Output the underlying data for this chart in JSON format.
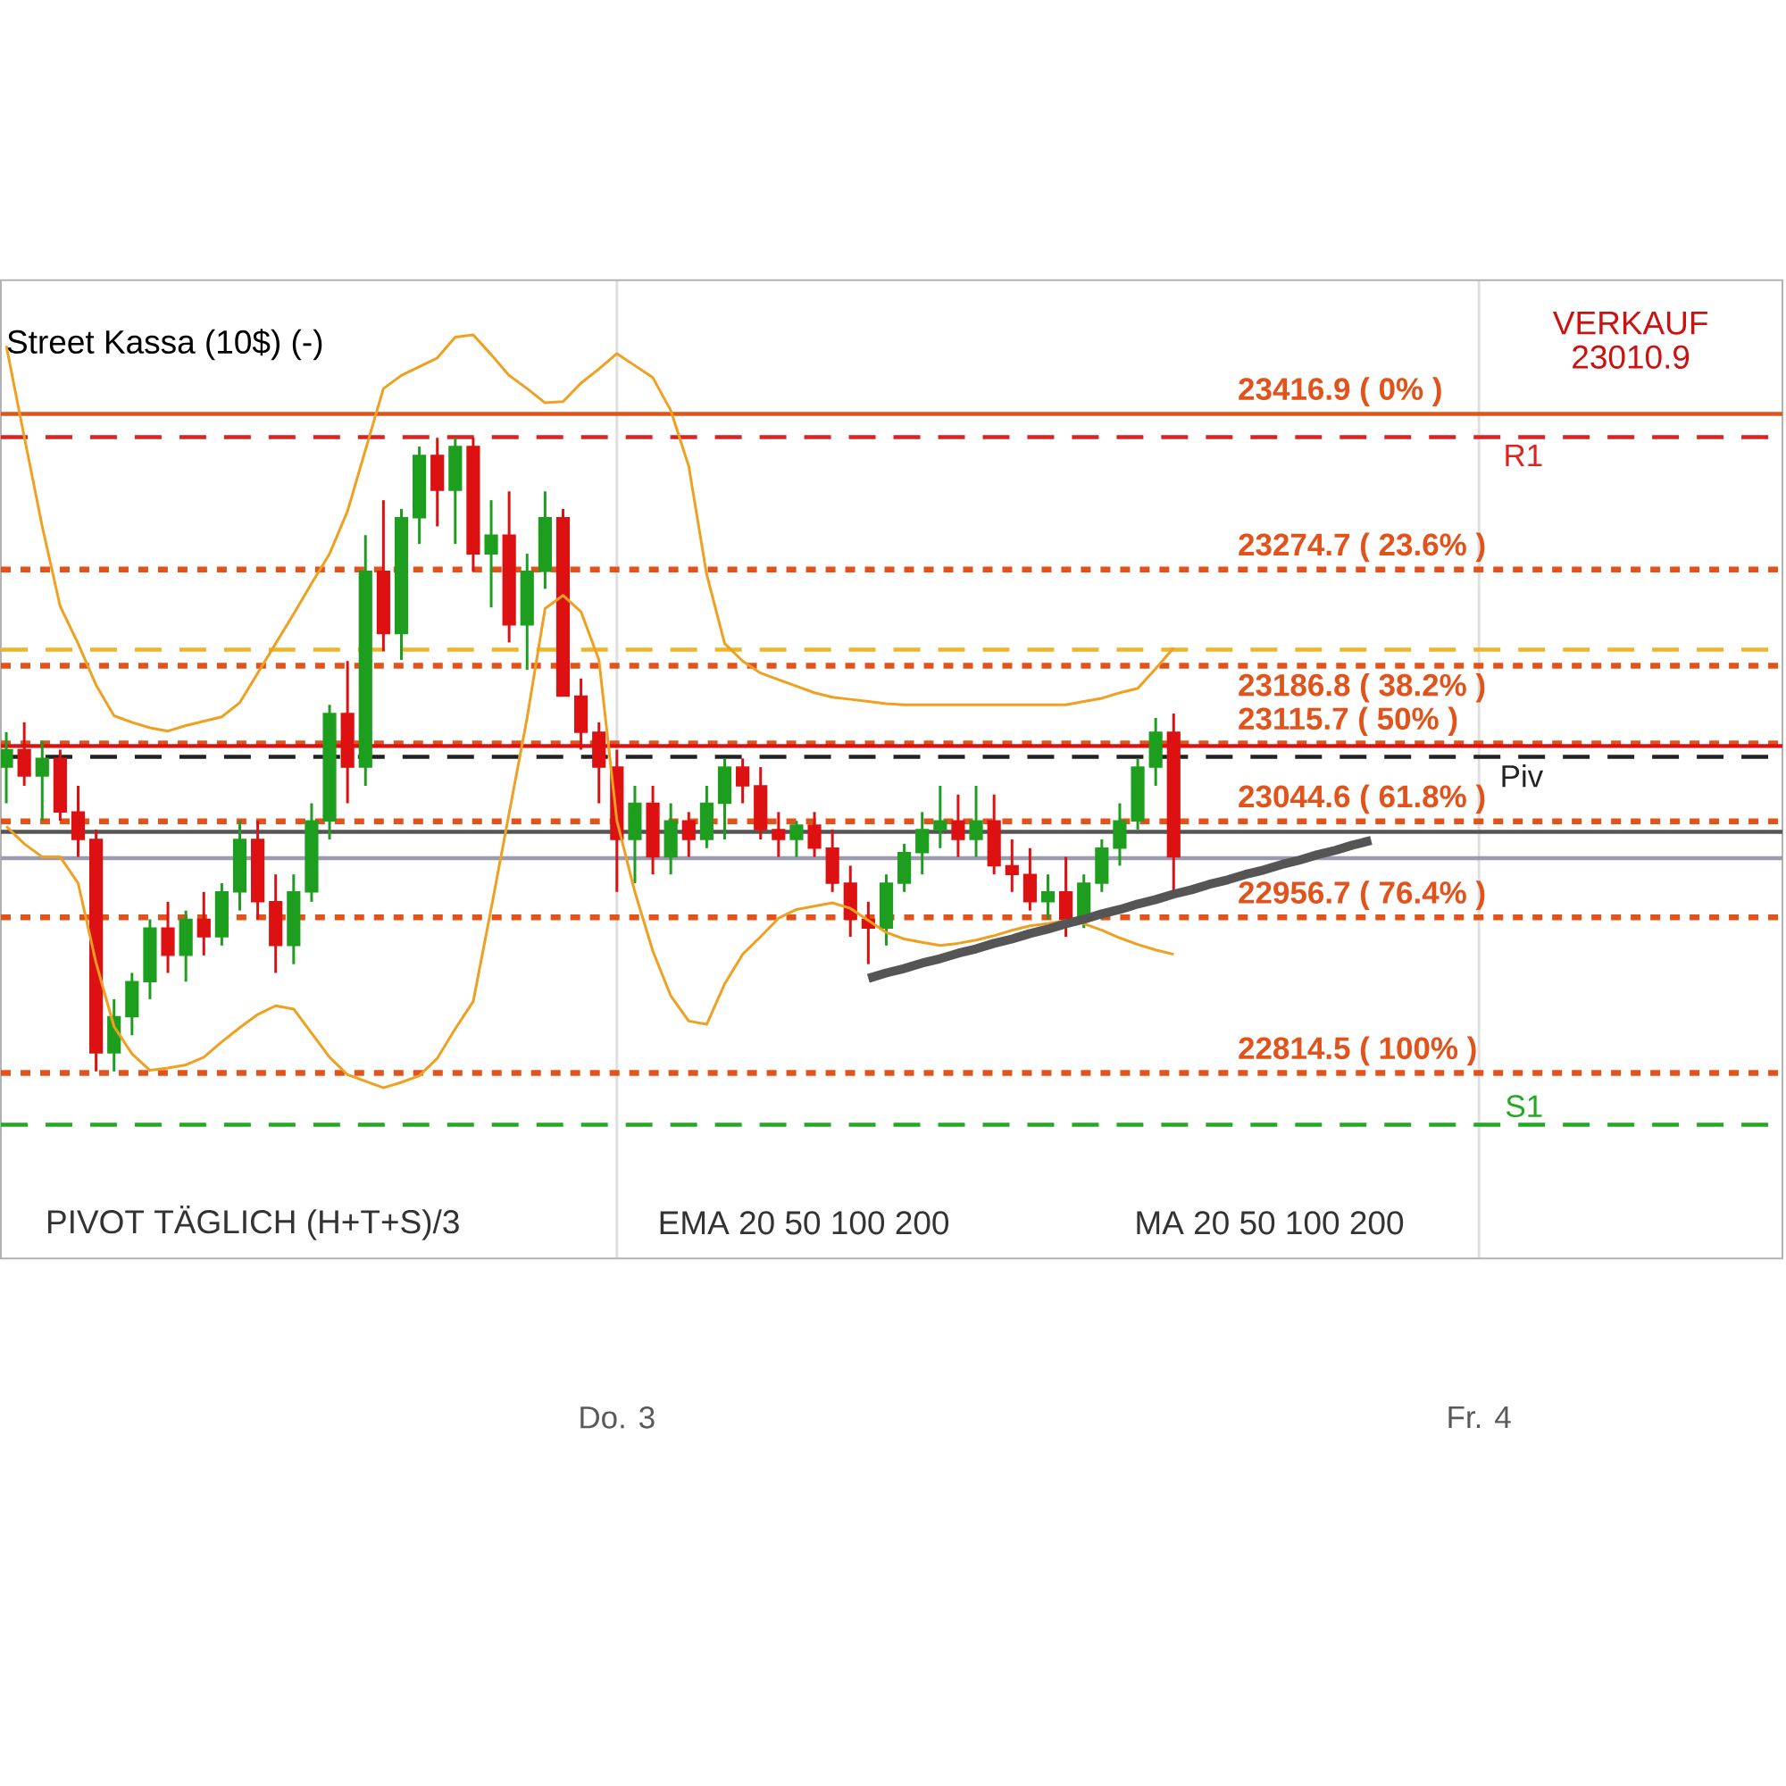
{
  "chart_data": {
    "type": "candlestick",
    "title": "Street Kassa (10$) (-)",
    "categories": [
      null,
      null,
      null,
      null,
      null,
      null,
      null,
      null,
      null,
      null,
      null,
      null,
      null,
      null,
      null,
      null,
      null,
      null,
      null,
      null,
      null,
      null,
      null,
      null,
      null,
      null,
      null,
      null,
      null,
      null,
      null,
      null,
      null,
      null,
      "Do. 3",
      null,
      null,
      null,
      null,
      null,
      null,
      null,
      null,
      null,
      null,
      null,
      null,
      null,
      null,
      null,
      null,
      null,
      null,
      null,
      null,
      null,
      null,
      null,
      null,
      null,
      null,
      null,
      null,
      null,
      null,
      null,
      null,
      null,
      null,
      null,
      null,
      null,
      null,
      null,
      null,
      null,
      null,
      null,
      null,
      null,
      null,
      null,
      "Fr. 4",
      null,
      null,
      null,
      null,
      null,
      null,
      null,
      null,
      null,
      null,
      null,
      null,
      null,
      null,
      null,
      null
    ],
    "ohlc": [
      [
        23094,
        23126,
        23061,
        23110
      ],
      [
        23110,
        23135,
        23077,
        23086
      ],
      [
        23086,
        23118,
        23045,
        23102
      ],
      [
        23102,
        23110,
        23045,
        23053
      ],
      [
        23053,
        23077,
        23012,
        23028
      ],
      [
        23028,
        23037,
        22816,
        22833
      ],
      [
        22833,
        22882,
        22816,
        22866
      ],
      [
        22866,
        22906,
        22849,
        22898
      ],
      [
        22898,
        22955,
        22882,
        22947
      ],
      [
        22947,
        22971,
        22906,
        22922
      ],
      [
        22922,
        22963,
        22898,
        22955
      ],
      [
        22955,
        22980,
        22922,
        22939
      ],
      [
        22939,
        22988,
        22931,
        22980
      ],
      [
        22980,
        23045,
        22963,
        23028
      ],
      [
        23028,
        23045,
        22955,
        22971
      ],
      [
        22971,
        22996,
        22906,
        22931
      ],
      [
        22931,
        22996,
        22914,
        22980
      ],
      [
        22980,
        23061,
        22971,
        23045
      ],
      [
        23045,
        23151,
        23028,
        23143
      ],
      [
        23143,
        23191,
        23061,
        23094
      ],
      [
        23094,
        23306,
        23077,
        23273
      ],
      [
        23273,
        23338,
        23200,
        23216
      ],
      [
        23216,
        23330,
        23192,
        23322
      ],
      [
        23322,
        23387,
        23298,
        23379
      ],
      [
        23379,
        23395,
        23314,
        23347
      ],
      [
        23347,
        23395,
        23298,
        23387
      ],
      [
        23387,
        23395,
        23273,
        23289
      ],
      [
        23289,
        23338,
        23240,
        23306
      ],
      [
        23306,
        23346,
        23208,
        23224
      ],
      [
        23224,
        23289,
        23183,
        23273
      ],
      [
        23273,
        23346,
        23257,
        23322
      ],
      [
        23322,
        23330,
        23159,
        23159
      ],
      [
        23159,
        23175,
        23110,
        23126
      ],
      [
        23126,
        23135,
        23061,
        23094
      ],
      [
        23094,
        23110,
        22980,
        23028
      ],
      [
        23028,
        23077,
        22988,
        23061
      ],
      [
        23061,
        23077,
        22996,
        23012
      ],
      [
        23012,
        23061,
        22996,
        23045
      ],
      [
        23045,
        23053,
        23012,
        23028
      ],
      [
        23028,
        23077,
        23020,
        23061
      ],
      [
        23061,
        23102,
        23028,
        23094
      ],
      [
        23094,
        23102,
        23061,
        23077
      ],
      [
        23077,
        23094,
        23028,
        23037
      ],
      [
        23037,
        23053,
        23012,
        23028
      ],
      [
        23028,
        23045,
        23012,
        23041
      ],
      [
        23041,
        23053,
        23012,
        23020
      ],
      [
        23020,
        23037,
        22980,
        22988
      ],
      [
        22988,
        23004,
        22939,
        22955
      ],
      [
        22955,
        22971,
        22914,
        22947
      ],
      [
        22947,
        22996,
        22931,
        22988
      ],
      [
        22988,
        23024,
        22980,
        23016
      ],
      [
        23016,
        23053,
        22996,
        23037
      ],
      [
        23037,
        23077,
        23020,
        23045
      ],
      [
        23045,
        23069,
        23012,
        23028
      ],
      [
        23028,
        23077,
        23012,
        23045
      ],
      [
        23045,
        23069,
        22996,
        23004
      ],
      [
        23004,
        23028,
        22980,
        22996
      ],
      [
        22996,
        23020,
        22963,
        22971
      ],
      [
        22971,
        22996,
        22955,
        22980
      ],
      [
        22980,
        23012,
        22939,
        22955
      ],
      [
        22955,
        22996,
        22947,
        22988
      ],
      [
        22988,
        23028,
        22980,
        23020
      ],
      [
        23020,
        23061,
        23004,
        23045
      ],
      [
        23045,
        23102,
        23037,
        23094
      ],
      [
        23094,
        23139,
        23077,
        23126
      ],
      [
        23126,
        23143,
        22980,
        23012
      ],
      null,
      null,
      null,
      null,
      null,
      null,
      null,
      null,
      null,
      null,
      null,
      null,
      null,
      null,
      null,
      null,
      null,
      null,
      null,
      null,
      null,
      null,
      null,
      null,
      null,
      null,
      null,
      null,
      null,
      null,
      null,
      null,
      null
    ],
    "series": [
      {
        "type": "line",
        "color": "#f0a020",
        "values": [
          23479,
          23396,
          23314,
          23241,
          23207,
          23169,
          23141,
          23135,
          23130,
          23127,
          23132,
          23136,
          23140,
          23153,
          23180,
          23207,
          23234,
          23262,
          23289,
          23328,
          23384,
          23440,
          23452,
          23460,
          23468,
          23487,
          23489,
          23471,
          23452,
          23440,
          23427,
          23428,
          23445,
          23458,
          23472,
          23461,
          23450,
          23420,
          23369,
          23270,
          23207,
          23191,
          23180,
          23174,
          23168,
          23162,
          23158,
          23156,
          23154,
          23152,
          23151,
          23151,
          23151,
          23151,
          23151,
          23151,
          23151,
          23151,
          23151,
          23151,
          23154,
          23157,
          23162,
          23166,
          23184,
          23203,
          null,
          null,
          null,
          null,
          null,
          null,
          null,
          null,
          null,
          null,
          null,
          null,
          null,
          null,
          null,
          null,
          null,
          null,
          null,
          null,
          null,
          null,
          null,
          null,
          null,
          null,
          null,
          null,
          null,
          null,
          null,
          null,
          null
        ]
      },
      {
        "type": "line",
        "color": "#f0a020",
        "values": [
          23040,
          23024,
          23012,
          23012,
          22988,
          22915,
          22857,
          22832,
          22817,
          22819,
          22822,
          22829,
          22843,
          22856,
          22868,
          22876,
          22873,
          22851,
          22829,
          22813,
          22807,
          22801,
          22806,
          22812,
          22828,
          22855,
          22880,
          22965,
          23052,
          23139,
          23239,
          23251,
          23236,
          23192,
          23045,
          22980,
          22926,
          22885,
          22862,
          22859,
          22896,
          22923,
          22939,
          22956,
          22964,
          22967,
          22970,
          22965,
          22954,
          22943,
          22937,
          22934,
          22931,
          22933,
          22936,
          22940,
          22945,
          22949,
          22951,
          22954,
          22951,
          22945,
          22938,
          22932,
          22927,
          22923,
          null,
          null,
          null,
          null,
          null,
          null,
          null,
          null,
          null,
          null,
          null,
          null,
          null,
          null,
          null,
          null,
          null,
          null,
          null,
          null,
          null,
          null,
          null,
          null,
          null,
          null,
          null,
          null,
          null,
          null,
          null,
          null,
          null
        ]
      },
      {
        "type": "line",
        "color": "#555555",
        "values": [
          null,
          null,
          null,
          null,
          null,
          null,
          null,
          null,
          null,
          null,
          null,
          null,
          null,
          null,
          null,
          null,
          null,
          null,
          null,
          null,
          null,
          null,
          null,
          null,
          null,
          null,
          null,
          null,
          null,
          null,
          null,
          null,
          null,
          null,
          null,
          null,
          null,
          null,
          null,
          null,
          null,
          null,
          null,
          null,
          null,
          null,
          null,
          null,
          22901,
          22906,
          22910,
          22915,
          22919,
          22924,
          22928,
          22933,
          22937,
          22942,
          22946,
          22951,
          22955,
          22960,
          22964,
          22969,
          22973,
          22978,
          22982,
          22987,
          22991,
          22996,
          23000,
          23005,
          23009,
          23014,
          23018,
          23023,
          23027,
          null,
          null,
          null,
          null,
          null,
          null,
          null,
          null,
          null,
          null,
          null,
          null,
          null,
          null,
          null,
          null,
          null,
          null,
          null,
          null,
          null,
          null
        ]
      }
    ],
    "ylim": [
      22645,
      23539
    ],
    "tick_labels": "x",
    "grid": "x",
    "ref_lines": [
      {
        "axis": "y",
        "value": 23416.9,
        "label": "23416.9 ( 0% )",
        "color": "#e2531b",
        "line_style": "solid"
      },
      {
        "axis": "y",
        "value": 23274.7,
        "label": "23274.7 ( 23.6% )",
        "color": "#e2531b",
        "line_style": "dotted"
      },
      {
        "axis": "y",
        "value": 23186.8,
        "label": "23186.8 ( 38.2% )",
        "color": "#e2531b",
        "line_style": "dotted"
      },
      {
        "axis": "y",
        "value": 23115.7,
        "label": "23115.7 ( 50% )",
        "color": "#e2531b",
        "line_style": "dotted"
      },
      {
        "axis": "y",
        "value": 23044.6,
        "label": "23044.6 ( 61.8% )",
        "color": "#e2531b",
        "line_style": "dotted"
      },
      {
        "axis": "y",
        "value": 22956.7,
        "label": "22956.7 ( 76.4% )",
        "color": "#e2531b",
        "line_style": "dotted"
      },
      {
        "axis": "y",
        "value": 22814.5,
        "label": "22814.5 ( 100% )",
        "color": "#e2531b",
        "line_style": "dotted"
      },
      {
        "axis": "y",
        "value": 23395.7,
        "label": "R1",
        "color": "#dd2222",
        "line_style": "dashed"
      },
      {
        "axis": "y",
        "value": 23201.4,
        "color": "#f0b429",
        "line_style": "dashed"
      },
      {
        "axis": "y",
        "value": 23103.5,
        "label": "Piv",
        "color": "#222222",
        "line_style": "dashed"
      },
      {
        "axis": "y",
        "value": 23113.3,
        "color": "#dd1111",
        "line_style": "solid"
      },
      {
        "axis": "y",
        "value": 23034.9,
        "color": "#555555",
        "line_style": "solid"
      },
      {
        "axis": "y",
        "value": 23010.9,
        "color": "#9a9ab0",
        "line_style": "solid"
      },
      {
        "axis": "y",
        "value": 22767.2,
        "label": "S1",
        "color": "#22aa22",
        "line_style": "dashed"
      }
    ],
    "annotations": [
      "VERKAUF",
      "23010.9",
      "PIVOT TÄGLICH (H+T+S)/3",
      "EMA 20 50 100 200",
      "MA 20 50 100 200"
    ]
  }
}
